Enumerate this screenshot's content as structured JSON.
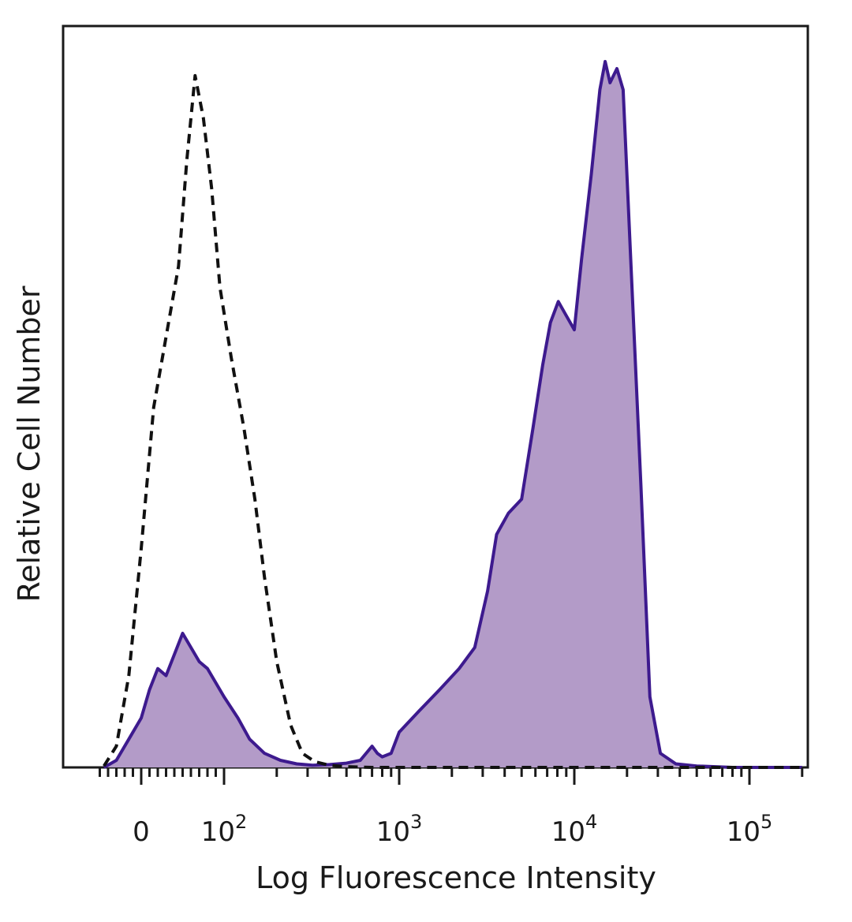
{
  "chart_data": {
    "type": "area",
    "xlabel": "Log Fluorescence Intensity",
    "ylabel": "Relative Cell Number",
    "x_scale": "biexponential",
    "x_ticks": [
      {
        "value": 0,
        "base": "0",
        "exp": ""
      },
      {
        "value": 100,
        "base": "10",
        "exp": "2"
      },
      {
        "value": 1000,
        "base": "10",
        "exp": "3"
      },
      {
        "value": 10000,
        "base": "10",
        "exp": "4"
      },
      {
        "value": 100000,
        "base": "10",
        "exp": "5"
      }
    ],
    "xlim": [
      -60,
      200000
    ],
    "ylim": [
      0,
      100
    ],
    "grid": false,
    "legend": "none",
    "series": [
      {
        "style": "dashed-outline",
        "color": "#111111",
        "x": [
          -45,
          -30,
          -15,
          0,
          15,
          30,
          45,
          55,
          65,
          75,
          85,
          95,
          110,
          130,
          150,
          170,
          200,
          240,
          280,
          330,
          400,
          500,
          700,
          1000,
          2000,
          5000,
          10000,
          50000,
          200000
        ],
        "y": [
          0.2,
          3,
          13,
          31,
          51,
          61,
          71,
          86,
          98,
          92,
          82,
          68,
          58,
          48,
          38,
          27,
          15,
          6,
          2,
          0.8,
          0.3,
          0.1,
          0,
          0,
          0,
          0,
          0,
          0,
          0
        ]
      },
      {
        "style": "filled",
        "color": "#3d1a8e",
        "fill": "#b39bc8",
        "x": [
          -45,
          -30,
          -15,
          0,
          10,
          20,
          30,
          40,
          50,
          60,
          70,
          80,
          90,
          100,
          120,
          140,
          170,
          210,
          260,
          320,
          400,
          500,
          600,
          700,
          750,
          800,
          900,
          1000,
          1300,
          1700,
          2200,
          2700,
          3200,
          3600,
          4200,
          5000,
          5800,
          6600,
          7300,
          8100,
          9000,
          10000,
          11000,
          12500,
          14000,
          15000,
          16000,
          17500,
          19000,
          21000,
          24000,
          27000,
          31000,
          38000,
          50000,
          80000,
          150000,
          200000
        ],
        "y": [
          0,
          1,
          4,
          7,
          11,
          14,
          13,
          16,
          19,
          17,
          15,
          14,
          12,
          10,
          7,
          4,
          2,
          1,
          0.5,
          0.3,
          0.4,
          0.6,
          1,
          3,
          2,
          1.5,
          2,
          5,
          8,
          11,
          14,
          17,
          25,
          33,
          36,
          38,
          48,
          57,
          63,
          66,
          64,
          62,
          72,
          84,
          96,
          100,
          97,
          99,
          96,
          72,
          40,
          10,
          2,
          0.5,
          0.2,
          0,
          0,
          0
        ]
      }
    ]
  }
}
